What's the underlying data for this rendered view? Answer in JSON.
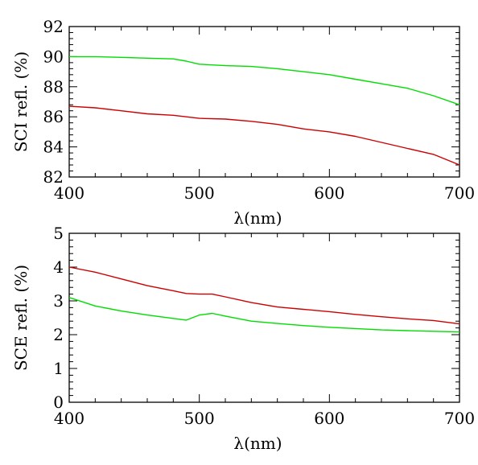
{
  "chart_data": [
    {
      "type": "line",
      "xlabel": "λ(nm)",
      "ylabel": "SCI refl. (%)",
      "xlim": [
        400,
        700
      ],
      "ylim": [
        82,
        92
      ],
      "xticks": [
        400,
        500,
        600,
        700
      ],
      "yticks": [
        82,
        84,
        86,
        88,
        90,
        92
      ],
      "grid": false,
      "series": [
        {
          "color": "#00dd00",
          "x": [
            400,
            420,
            440,
            460,
            480,
            490,
            500,
            520,
            540,
            560,
            580,
            600,
            620,
            640,
            660,
            680,
            700
          ],
          "y": [
            90.0,
            90.0,
            89.95,
            89.9,
            89.85,
            89.7,
            89.5,
            89.4,
            89.35,
            89.2,
            89.0,
            88.8,
            88.5,
            88.2,
            87.9,
            87.4,
            86.8
          ]
        },
        {
          "color": "#cc0000",
          "x": [
            400,
            420,
            440,
            460,
            480,
            490,
            500,
            520,
            540,
            560,
            580,
            600,
            620,
            640,
            660,
            680,
            700
          ],
          "y": [
            86.7,
            86.6,
            86.4,
            86.2,
            86.1,
            86.0,
            85.9,
            85.85,
            85.7,
            85.5,
            85.2,
            85.0,
            84.7,
            84.3,
            83.9,
            83.5,
            82.8
          ]
        }
      ]
    },
    {
      "type": "line",
      "xlabel": "λ(nm)",
      "ylabel": "SCE refl. (%)",
      "xlim": [
        400,
        700
      ],
      "ylim": [
        0,
        5
      ],
      "xticks": [
        400,
        500,
        600,
        700
      ],
      "yticks": [
        0,
        1,
        2,
        3,
        4,
        5
      ],
      "grid": false,
      "series": [
        {
          "color": "#cc0000",
          "x": [
            400,
            420,
            440,
            460,
            480,
            490,
            500,
            510,
            520,
            540,
            560,
            580,
            600,
            620,
            640,
            660,
            680,
            700
          ],
          "y": [
            4.0,
            3.85,
            3.65,
            3.45,
            3.3,
            3.22,
            3.2,
            3.2,
            3.12,
            2.95,
            2.82,
            2.75,
            2.68,
            2.6,
            2.53,
            2.47,
            2.42,
            2.32
          ]
        },
        {
          "color": "#00dd00",
          "x": [
            400,
            420,
            440,
            460,
            480,
            490,
            500,
            510,
            520,
            540,
            560,
            580,
            600,
            620,
            640,
            660,
            680,
            700
          ],
          "y": [
            3.1,
            2.85,
            2.7,
            2.58,
            2.48,
            2.43,
            2.58,
            2.63,
            2.55,
            2.4,
            2.33,
            2.27,
            2.22,
            2.18,
            2.14,
            2.12,
            2.1,
            2.08
          ]
        }
      ]
    }
  ]
}
